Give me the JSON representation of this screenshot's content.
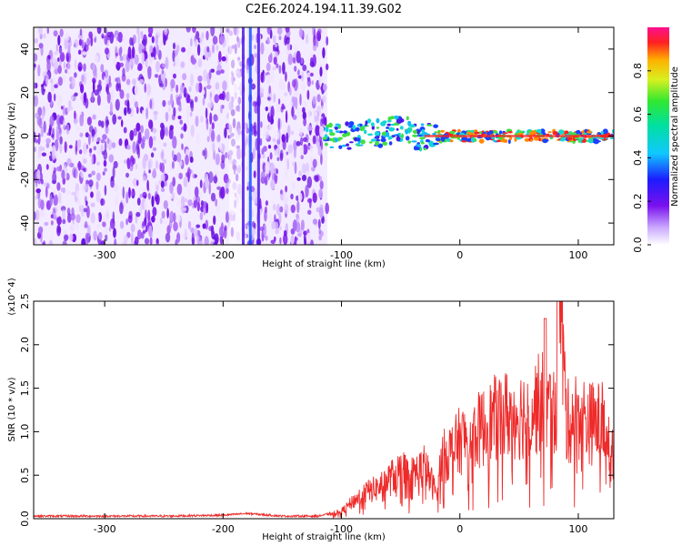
{
  "title": "C2E6.2024.194.11.39.G02",
  "colors": {
    "snr_line": "#ee2a2a",
    "spectrogram_low": "#e8d9ff",
    "spectrogram_mid": "#7a10ee",
    "ridge_cyan": "#14d6d6",
    "ridge_green": "#40e040",
    "ridge_red": "#ff2020"
  },
  "chart_data": [
    {
      "type": "heatmap",
      "xlabel": "Height of straight line (km)",
      "ylabel": "Frequency (Hz)",
      "xlim": [
        -360,
        130
      ],
      "ylim": [
        -50,
        50
      ],
      "x_ticks": [
        -300,
        -200,
        -100,
        0,
        100
      ],
      "y_ticks": [
        -40,
        -20,
        0,
        20,
        40
      ],
      "colorbar": {
        "label": "Normalized spectral amplitude",
        "range": [
          0,
          1
        ],
        "ticks": [
          "0.0",
          "0.2",
          "0.4",
          "0.6",
          "0.8"
        ],
        "colormap": "rainbow"
      },
      "regions": {
        "noise_x_range": [
          -360,
          -112
        ],
        "ridge_x_range": [
          -115,
          130
        ],
        "ridge_frequency": 0,
        "ridge_peak_x_range": [
          -30,
          130
        ],
        "vertical_streaks_x": [
          -183,
          -177,
          -170
        ]
      }
    },
    {
      "type": "line",
      "xlabel": "Height of straight line (km)",
      "ylabel": "SNR (10 * v/v)",
      "multiplier_label": "(x10^4)",
      "xlim": [
        -360,
        130
      ],
      "ylim": [
        0,
        2.5
      ],
      "x_ticks": [
        -300,
        -200,
        -100,
        0,
        100
      ],
      "y_ticks": [
        "0.0",
        "0.5",
        "1.0",
        "1.5",
        "2.0",
        "2.5"
      ],
      "series": [
        {
          "x": [
            -360,
            -300,
            -250,
            -200,
            -180,
            -150,
            -120,
            -100,
            -90,
            -80,
            -70,
            -60,
            -50,
            -40,
            -30,
            -20,
            -15,
            -10,
            -5,
            0,
            10,
            20,
            30,
            40,
            50,
            60,
            70,
            80,
            85,
            90,
            100,
            110,
            120,
            130
          ],
          "y": [
            0.03,
            0.03,
            0.03,
            0.04,
            0.06,
            0.03,
            0.03,
            0.08,
            0.2,
            0.3,
            0.35,
            0.45,
            0.55,
            0.5,
            0.6,
            0.3,
            0.7,
            0.75,
            0.8,
            0.9,
            0.95,
            1.05,
            1.15,
            1.2,
            1.2,
            1.25,
            1.35,
            1.2,
            2.55,
            1.1,
            1.2,
            1.1,
            1.1,
            0.8
          ]
        }
      ]
    }
  ]
}
